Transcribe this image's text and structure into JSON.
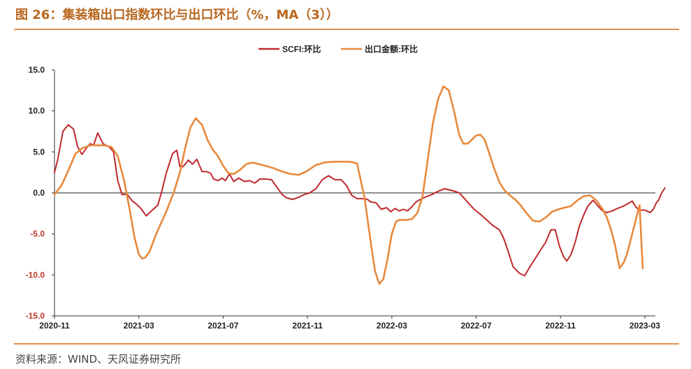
{
  "figure": {
    "title": "图 26：集装箱出口指数环比与出口环比（%，MA（3））",
    "source": "资料来源：WIND、天风证券研究所",
    "colors": {
      "accent": "#e2914d",
      "title": "#b8671f"
    }
  },
  "chart_data": {
    "type": "line",
    "title": "",
    "xlabel": "",
    "ylabel": "",
    "ylim": [
      -15,
      15
    ],
    "yticks": [
      {
        "label": "15.0",
        "value": 15
      },
      {
        "label": "10.0",
        "value": 10
      },
      {
        "label": "5.0",
        "value": 5
      },
      {
        "label": "0.0",
        "value": 0
      },
      {
        "label": "-5.0",
        "value": -5
      },
      {
        "label": "-10.0",
        "value": -10
      },
      {
        "label": "-15.0",
        "value": -15
      }
    ],
    "negative_tick_color": "#c0392b",
    "xlim": [
      0,
      28.5
    ],
    "xticks": [
      {
        "label": "2020-11",
        "value": 0
      },
      {
        "label": "2021-03",
        "value": 4
      },
      {
        "label": "2021-07",
        "value": 8
      },
      {
        "label": "2021-11",
        "value": 12
      },
      {
        "label": "2022-03",
        "value": 16
      },
      {
        "label": "2022-07",
        "value": 20
      },
      {
        "label": "2022-11",
        "value": 24
      },
      {
        "label": "2023-03",
        "value": 28
      }
    ],
    "grid": false,
    "legend": "top-center",
    "series": [
      {
        "name": "SCFI:环比",
        "color": "#c0282c",
        "x": [
          0,
          0.15,
          0.4,
          0.65,
          0.9,
          1.1,
          1.3,
          1.55,
          1.7,
          1.85,
          2.05,
          2.3,
          2.6,
          2.8,
          3.0,
          3.2,
          3.45,
          3.7,
          3.9,
          4.1,
          4.35,
          4.6,
          4.9,
          5.1,
          5.3,
          5.6,
          5.8,
          5.95,
          6.1,
          6.35,
          6.55,
          6.75,
          7.0,
          7.2,
          7.4,
          7.55,
          7.75,
          7.95,
          8.1,
          8.3,
          8.5,
          8.75,
          9.0,
          9.25,
          9.5,
          9.75,
          10.0,
          10.3,
          10.6,
          10.8,
          11.0,
          11.3,
          11.6,
          11.85,
          12.1,
          12.4,
          12.7,
          13.0,
          13.3,
          13.6,
          13.85,
          14.1,
          14.35,
          14.6,
          14.85,
          15.0,
          15.25,
          15.5,
          15.75,
          15.95,
          16.15,
          16.35,
          16.55,
          16.75,
          16.95,
          17.15,
          17.35,
          17.6,
          17.9,
          18.2,
          18.5,
          18.85,
          19.2,
          19.55,
          19.9,
          20.2,
          20.5,
          20.8,
          21.1,
          21.3,
          21.5,
          21.75,
          22.05,
          22.3,
          22.55,
          22.8,
          23.05,
          23.3,
          23.55,
          23.75,
          23.95,
          24.15,
          24.3,
          24.5,
          24.7,
          24.9,
          25.1,
          25.3,
          25.55,
          25.75,
          25.95,
          26.2,
          26.45,
          26.7,
          27.0,
          27.2,
          27.4,
          27.6,
          27.8,
          28.0,
          28.25,
          28.4,
          28.55,
          28.65,
          28.8,
          28.95
        ],
        "values": [
          2.5,
          4.0,
          7.5,
          8.3,
          7.8,
          5.6,
          4.7,
          5.6,
          6.0,
          5.8,
          7.3,
          6.0,
          5.6,
          5.0,
          1.5,
          -0.2,
          -0.2,
          -1.0,
          -1.4,
          -1.9,
          -2.8,
          -2.2,
          -1.5,
          0.3,
          2.4,
          4.8,
          5.2,
          3.2,
          3.2,
          4.0,
          3.5,
          4.1,
          2.6,
          2.6,
          2.4,
          1.7,
          1.5,
          1.8,
          1.5,
          2.3,
          1.4,
          1.8,
          1.4,
          1.5,
          1.2,
          1.7,
          1.7,
          1.6,
          0.5,
          -0.2,
          -0.6,
          -0.8,
          -0.5,
          -0.2,
          0.0,
          0.5,
          1.6,
          2.1,
          1.6,
          1.6,
          0.9,
          -0.3,
          -0.7,
          -0.7,
          -0.8,
          -1.1,
          -1.2,
          -2.0,
          -1.8,
          -2.3,
          -1.9,
          -2.2,
          -2.0,
          -2.2,
          -1.7,
          -1.1,
          -0.8,
          -0.5,
          -0.2,
          0.2,
          0.5,
          0.3,
          0.0,
          -1.0,
          -2.0,
          -2.6,
          -3.3,
          -4.0,
          -4.5,
          -5.5,
          -7.0,
          -9.0,
          -9.8,
          -10.1,
          -9.0,
          -8.0,
          -7.0,
          -6.0,
          -4.5,
          -4.5,
          -6.5,
          -7.8,
          -8.3,
          -7.5,
          -6.0,
          -4.0,
          -2.7,
          -1.6,
          -0.9,
          -1.5,
          -2.1,
          -2.4,
          -2.2,
          -1.9,
          -1.6,
          -1.3,
          -1.0,
          -1.8,
          -2.1,
          -2.1,
          -2.4,
          -2.0,
          -1.2,
          -0.9,
          0.0,
          0.6
        ]
      },
      {
        "name": "出口金额:环比",
        "color": "#e7893c",
        "x": [
          0,
          0.35,
          0.7,
          1.0,
          1.35,
          1.7,
          2.0,
          2.35,
          2.7,
          3.0,
          3.3,
          3.6,
          3.8,
          4.0,
          4.15,
          4.3,
          4.5,
          4.75,
          5.0,
          5.3,
          5.65,
          5.95,
          6.2,
          6.45,
          6.7,
          7.0,
          7.25,
          7.5,
          7.75,
          8.0,
          8.25,
          8.5,
          8.8,
          9.1,
          9.4,
          9.7,
          10.0,
          10.4,
          10.8,
          11.2,
          11.6,
          12.0,
          12.4,
          12.8,
          13.2,
          13.6,
          14.0,
          14.35,
          14.7,
          15.0,
          15.2,
          15.4,
          15.6,
          15.8,
          16.0,
          16.2,
          16.35,
          16.5,
          16.7,
          16.95,
          17.2,
          17.45,
          17.7,
          17.95,
          18.2,
          18.45,
          18.7,
          18.95,
          19.2,
          19.4,
          19.6,
          19.8,
          20.0,
          20.2,
          20.4,
          20.6,
          20.85,
          21.1,
          21.35,
          21.6,
          21.85,
          22.1,
          22.4,
          22.7,
          23.0,
          23.3,
          23.6,
          23.9,
          24.2,
          24.5,
          24.8,
          25.1,
          25.4,
          25.7,
          26.0,
          26.2,
          26.4,
          26.6,
          26.8,
          27.0,
          27.15,
          27.3,
          27.45,
          27.6,
          27.75,
          27.9
        ],
        "values": [
          -0.2,
          1.0,
          3.0,
          4.8,
          5.5,
          5.8,
          5.8,
          5.8,
          5.6,
          4.5,
          1.5,
          -2.5,
          -5.5,
          -7.5,
          -8.0,
          -7.9,
          -7.2,
          -5.5,
          -4.0,
          -2.3,
          0.0,
          2.5,
          5.5,
          8.0,
          9.1,
          8.3,
          6.5,
          5.3,
          4.5,
          3.3,
          2.4,
          2.3,
          2.8,
          3.5,
          3.7,
          3.5,
          3.3,
          3.0,
          2.6,
          2.3,
          2.2,
          2.7,
          3.4,
          3.7,
          3.8,
          3.8,
          3.8,
          3.6,
          -0.5,
          -6.0,
          -9.5,
          -11.1,
          -10.5,
          -8.0,
          -5.0,
          -3.5,
          -3.3,
          -3.3,
          -3.3,
          -3.2,
          -2.5,
          -0.5,
          4.0,
          8.5,
          11.5,
          13.0,
          12.5,
          10.0,
          7.0,
          6.0,
          6.0,
          6.5,
          7.0,
          7.1,
          6.5,
          5.0,
          3.0,
          1.3,
          0.3,
          -0.3,
          -0.8,
          -1.5,
          -2.5,
          -3.4,
          -3.5,
          -3.0,
          -2.3,
          -2.0,
          -1.8,
          -1.6,
          -0.9,
          -0.4,
          -0.3,
          -0.9,
          -2.0,
          -3.0,
          -4.5,
          -6.5,
          -9.2,
          -8.5,
          -7.5,
          -6.0,
          -4.5,
          -3.0,
          -1.5,
          -9.2
        ]
      }
    ]
  }
}
